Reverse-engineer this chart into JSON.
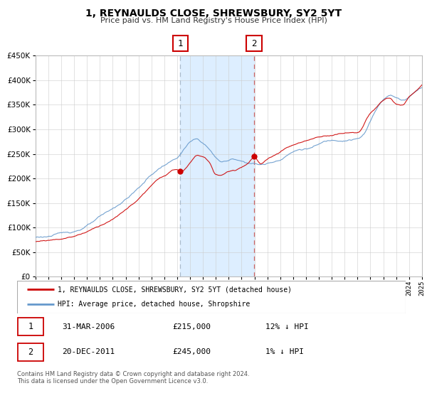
{
  "title": "1, REYNAULDS CLOSE, SHREWSBURY, SY2 5YT",
  "subtitle": "Price paid vs. HM Land Registry's House Price Index (HPI)",
  "legend_line1": "1, REYNAULDS CLOSE, SHREWSBURY, SY2 5YT (detached house)",
  "legend_line2": "HPI: Average price, detached house, Shropshire",
  "footer_line1": "Contains HM Land Registry data © Crown copyright and database right 2024.",
  "footer_line2": "This data is licensed under the Open Government Licence v3.0.",
  "transaction1_label": "1",
  "transaction1_date": "31-MAR-2006",
  "transaction1_price": "£215,000",
  "transaction1_hpi": "12% ↓ HPI",
  "transaction2_label": "2",
  "transaction2_date": "20-DEC-2011",
  "transaction2_price": "£245,000",
  "transaction2_hpi": "1% ↓ HPI",
  "sale1_year": 2006.25,
  "sale1_value": 215000,
  "sale2_year": 2011.97,
  "sale2_value": 245000,
  "vline1_x": 2006.25,
  "vline2_x": 2011.97,
  "shade_start": 2006.25,
  "shade_end": 2011.97,
  "ylim_min": 0,
  "ylim_max": 450000,
  "ytick_step": 50000,
  "xmin": 1995,
  "xmax": 2025,
  "red_line_color": "#cc0000",
  "blue_line_color": "#6699cc",
  "grid_color": "#cccccc",
  "shade_color": "#ddeeff",
  "vline1_color": "#aabbcc",
  "vline2_color": "#cc6666",
  "background_color": "#ffffff",
  "plot_bg_color": "#ffffff"
}
